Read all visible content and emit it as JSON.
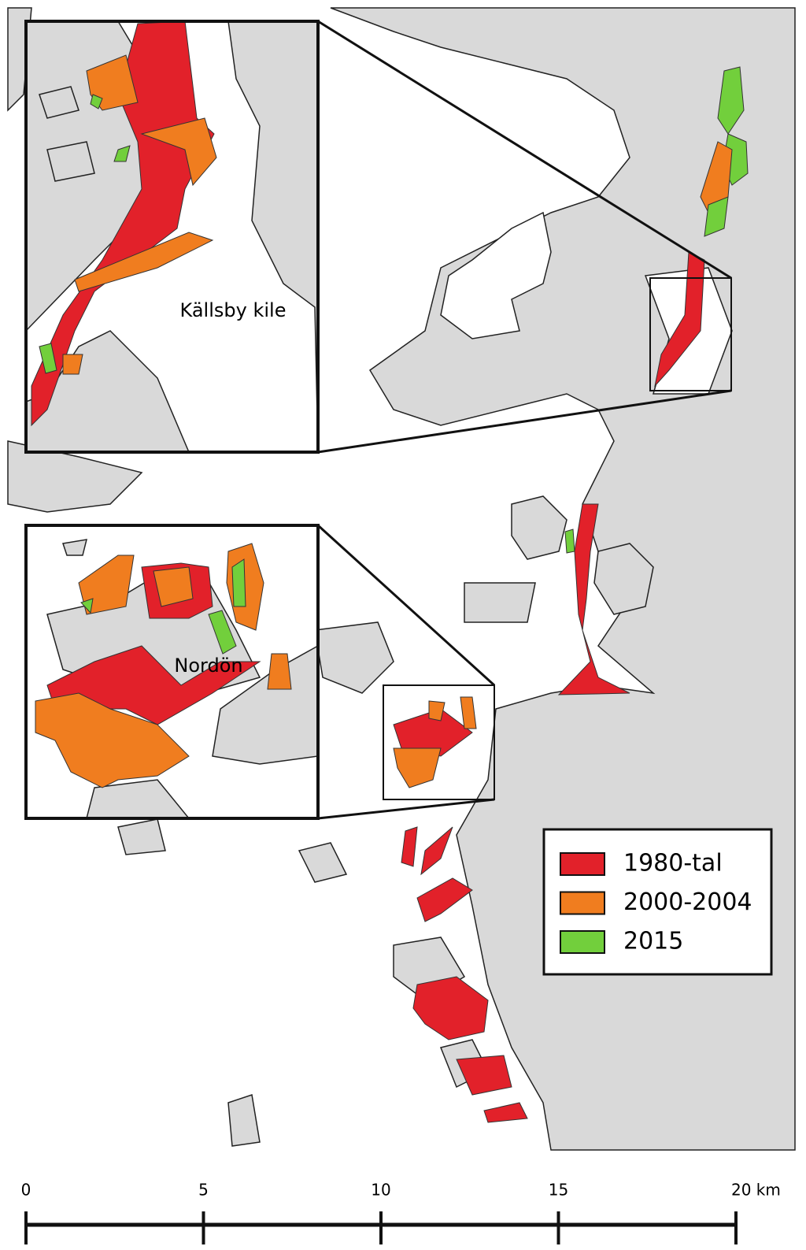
{
  "insets": [
    {
      "label": "Källsby kile"
    },
    {
      "label": "Nordön"
    }
  ],
  "legend": [
    {
      "label": "1980-tal",
      "color": "#e2212a"
    },
    {
      "label": "2000-2004",
      "color": "#f07d1f"
    },
    {
      "label": "2015",
      "color": "#72cf3c"
    }
  ],
  "scale_bar": {
    "ticks": [
      0,
      5,
      10,
      15,
      {
        "value": 20,
        "label": "20 km"
      }
    ]
  }
}
